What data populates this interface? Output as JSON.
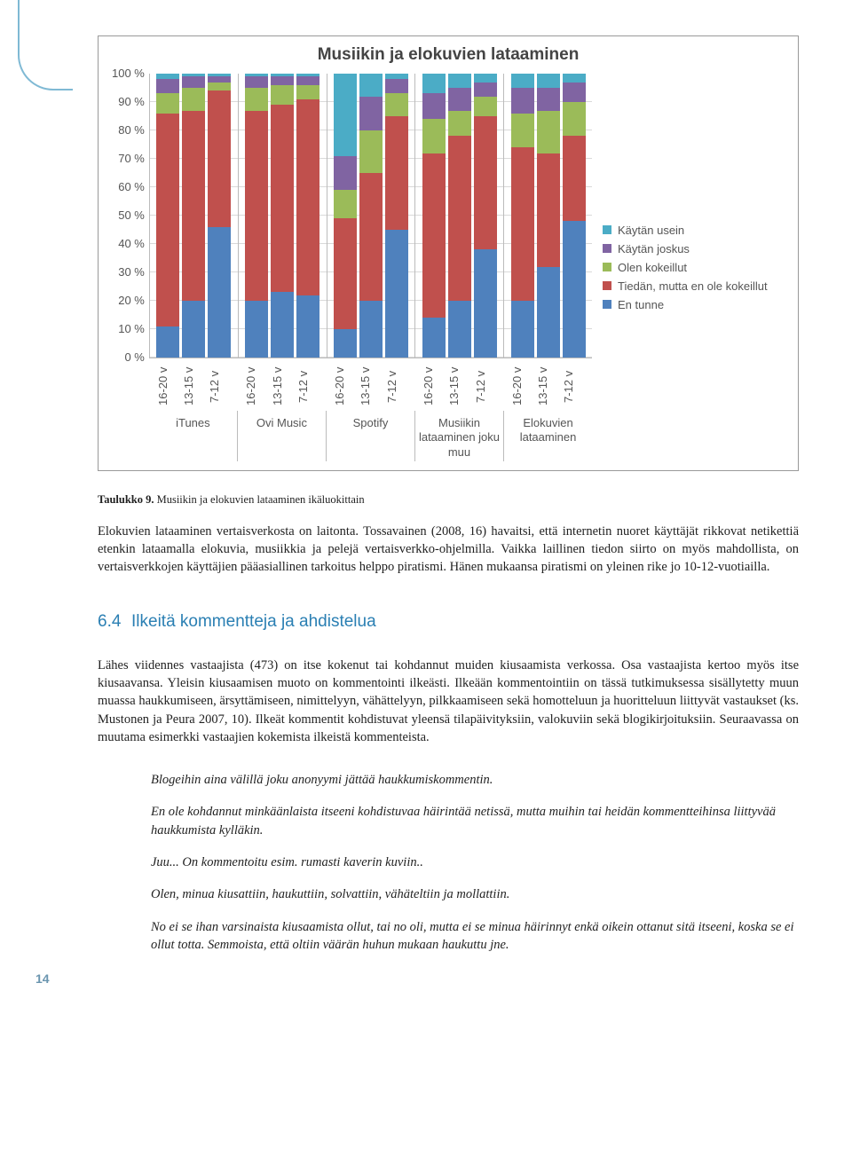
{
  "chart": {
    "type": "stacked-bar",
    "title": "Musiikin ja elokuvien lataaminen",
    "ylim": [
      0,
      100
    ],
    "ytick_step": 10,
    "yticks": [
      "0 %",
      "10 %",
      "20 %",
      "30 %",
      "40 %",
      "50 %",
      "60 %",
      "70 %",
      "80 %",
      "90 %",
      "100 %"
    ],
    "series": [
      {
        "name": "Käytän usein",
        "color": "#4bacc6"
      },
      {
        "name": "Käytän joskus",
        "color": "#8064a2"
      },
      {
        "name": "Olen kokeillut",
        "color": "#9bbb59"
      },
      {
        "name": "Tiedän, mutta en ole kokeillut",
        "color": "#c0504d"
      },
      {
        "name": "En tunne",
        "color": "#4f81bd"
      }
    ],
    "age_labels": [
      "16-20 v",
      "13-15 v",
      "7-12 v"
    ],
    "groups": [
      {
        "name": "iTunes",
        "bars": [
          {
            "vals": [
              2,
              5,
              7,
              75,
              11
            ]
          },
          {
            "vals": [
              1,
              4,
              8,
              67,
              20
            ]
          },
          {
            "vals": [
              1,
              2,
              3,
              48,
              46
            ]
          }
        ]
      },
      {
        "name": "Ovi Music",
        "bars": [
          {
            "vals": [
              1,
              4,
              8,
              67,
              20
            ]
          },
          {
            "vals": [
              1,
              3,
              7,
              66,
              23
            ]
          },
          {
            "vals": [
              1,
              3,
              5,
              69,
              22
            ]
          }
        ]
      },
      {
        "name": "Spotify",
        "bars": [
          {
            "vals": [
              29,
              12,
              10,
              39,
              10
            ]
          },
          {
            "vals": [
              8,
              12,
              15,
              45,
              20
            ]
          },
          {
            "vals": [
              2,
              5,
              8,
              40,
              45
            ]
          }
        ]
      },
      {
        "name": "Musiikin lataaminen joku muu",
        "bars": [
          {
            "vals": [
              7,
              9,
              12,
              58,
              14
            ]
          },
          {
            "vals": [
              5,
              8,
              9,
              58,
              20
            ]
          },
          {
            "vals": [
              3,
              5,
              7,
              47,
              38
            ]
          }
        ]
      },
      {
        "name": "Elokuvien lataaminen",
        "bars": [
          {
            "vals": [
              5,
              9,
              12,
              54,
              20
            ]
          },
          {
            "vals": [
              5,
              8,
              15,
              40,
              32
            ]
          },
          {
            "vals": [
              3,
              7,
              12,
              30,
              48
            ]
          }
        ]
      }
    ]
  },
  "caption_label": "Taulukko 9.",
  "caption_text": " Musiikin ja elokuvien lataaminen ikäluokittain",
  "para1": "Elokuvien lataaminen vertaisverkosta on laitonta. Tossavainen (2008, 16) havaitsi, että internetin nuoret käyttäjät rikkovat netikettiä etenkin lataamalla elokuvia, musiikkia ja pelejä vertaisverkko-ohjelmilla. Vaikka laillinen tiedon siirto on myös mahdollista, on vertaisverkkojen käyttäjien pääasiallinen tarkoitus helppo piratismi. Hänen mukaansa piratismi on yleinen rike jo 10-12-vuotiailla.",
  "section_num": "6.4",
  "section_title": "Ilkeitä kommentteja ja ahdistelua",
  "para2": "Lähes viidennes vastaajista (473) on itse kokenut tai kohdannut muiden kiusaamista verkossa. Osa vastaajista kertoo myös itse kiusaavansa. Yleisin kiusaamisen muoto on kommentointi ilkeästi. Ilkeään kommentointiin on tässä tutkimuksessa sisällytetty muun muassa haukkumiseen, ärsyttämiseen, nimittelyyn, vähättelyyn, pilkkaamiseen sekä homotteluun ja huoritteluun liittyvät vastaukset (ks. Mustonen ja Peura 2007, 10). Ilkeät kommentit kohdistuvat yleensä tilapäivityksiin, valokuviin sekä blogikirjoituksiin. Seuraavassa on muutama esimerkki vastaajien kokemista ilkeistä kommenteista.",
  "quotes": [
    "Blogeihin aina välillä joku anonyymi jättää haukkumiskommentin.",
    "En ole kohdannut minkäänlaista itseeni kohdistuvaa häirintää netissä, mutta muihin tai heidän kommentteihinsa liittyvää haukkumista kylläkin.",
    "Juu... On kommentoitu esim. rumasti kaverin kuviin..",
    "Olen, minua kiusattiin, haukuttiin, solvattiin, vähäteltiin ja mollattiin.",
    "No ei se ihan varsinaista kiusaamista ollut, tai no oli, mutta ei se minua häirinnyt enkä oikein ottanut sitä itseeni, koska se ei ollut totta. Semmoista, että oltiin väärän huhun mukaan haukuttu jne."
  ],
  "page_number": "14"
}
